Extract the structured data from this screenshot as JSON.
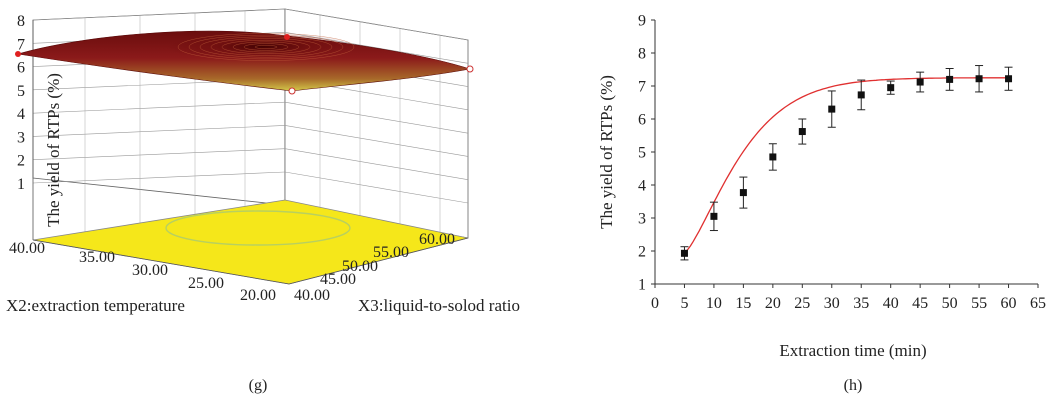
{
  "panels": {
    "g": {
      "caption": "(g)"
    },
    "h": {
      "caption": "(h)"
    }
  },
  "chart_data": [
    {
      "type": "surface",
      "panel": "(g)",
      "zlabel": "The yield of RTPs (%)",
      "zticks": [
        "1",
        "2",
        "3",
        "4",
        "5",
        "6",
        "7",
        "8"
      ],
      "zlim": [
        1,
        8
      ],
      "xlabel": "X2:extraction temperature",
      "xticks": [
        "40.00",
        "35.00",
        "30.00",
        "25.00",
        "20.00"
      ],
      "ylabel": "X3:liquid-to-solod ratio",
      "yticks": [
        "40.00",
        "45.00",
        "50.00",
        "55.00",
        "60.00"
      ],
      "surface_peak": 7.3,
      "surface_corners": {
        "left": 6.7,
        "right": 6.4,
        "front": 5.6,
        "back": 7.2
      },
      "design_points": [
        7.3,
        6.6,
        5.4,
        6.4
      ],
      "colors": {
        "surface_high": "#8b1a1a",
        "surface_low": "#d4c94a",
        "floor": "#f5e71a",
        "contour": "#b8d060",
        "points": "#e02020"
      }
    },
    {
      "type": "scatter",
      "panel": "(h)",
      "xlabel": "Extraction time (min)",
      "ylabel": "The yield of RTPs (%)",
      "xlim": [
        0,
        65
      ],
      "ylim": [
        1,
        9
      ],
      "xticks": [
        0,
        5,
        10,
        15,
        20,
        25,
        30,
        35,
        40,
        45,
        50,
        55,
        60,
        65
      ],
      "yticks": [
        1,
        2,
        3,
        4,
        5,
        6,
        7,
        8,
        9
      ],
      "x": [
        5,
        10,
        15,
        20,
        25,
        30,
        35,
        40,
        45,
        50,
        55,
        60
      ],
      "y": [
        1.93,
        3.05,
        3.77,
        4.85,
        5.62,
        6.3,
        6.73,
        6.95,
        7.12,
        7.2,
        7.22,
        7.22
      ],
      "error": [
        0.2,
        0.43,
        0.47,
        0.4,
        0.38,
        0.55,
        0.45,
        0.2,
        0.3,
        0.33,
        0.4,
        0.35
      ],
      "fit_curve": {
        "color": "#e03030",
        "y_start": 1.95,
        "y_plateau": 7.25
      },
      "grid": false
    }
  ]
}
